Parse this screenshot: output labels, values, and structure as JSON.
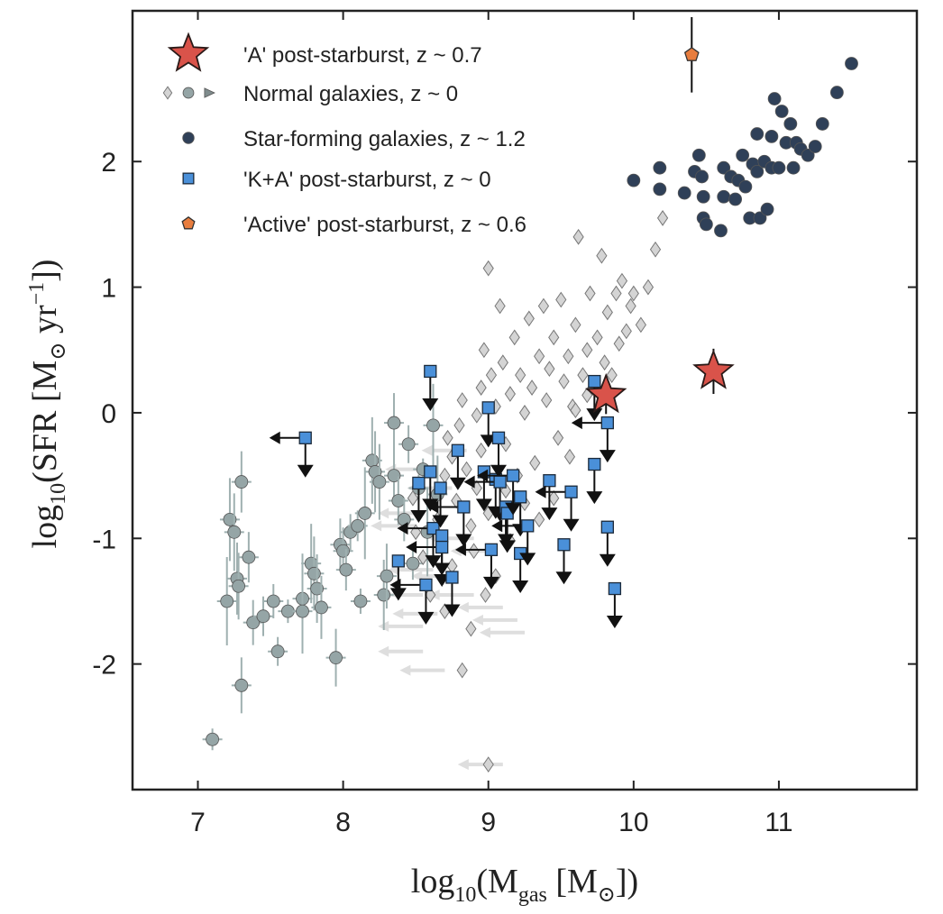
{
  "chart_data": {
    "type": "scatter",
    "xlim": [
      6.55,
      11.95
    ],
    "ylim": [
      -3.0,
      3.2
    ],
    "x_ticks": [
      "7",
      "8",
      "9",
      "10",
      "11"
    ],
    "y_ticks": [
      "-2",
      "-1",
      "0",
      "1",
      "2"
    ],
    "x_tick_values": [
      7,
      8,
      9,
      10,
      11
    ],
    "y_tick_values": [
      -2,
      -1,
      0,
      1,
      2
    ],
    "xlabel": {
      "prefix": "log",
      "sub": "10",
      "open": "(M",
      "sub2": "gas",
      "middle": " [M",
      "odot": "⊙",
      "close": "])"
    },
    "ylabel": {
      "prefix": "log",
      "sub": "10",
      "open": "(SFR [M",
      "odot": "⊙",
      "unit": " yr",
      "sup": "−1",
      "close": "])"
    },
    "grid": false,
    "legend_position": "top-left",
    "legend": [
      {
        "label": "'A' post-starburst, z ~ 0.7",
        "marker": "star",
        "color": "#d9534a"
      },
      {
        "label": "Normal galaxies, z ~ 0",
        "marker": "diamond-circle-triangle",
        "color": "#95a5a6"
      },
      {
        "label": "Star-forming galaxies, z ~ 1.2",
        "marker": "circle",
        "color": "#2f4058"
      },
      {
        "label": "'K+A' post-starburst, z ~ 0",
        "marker": "square",
        "color": "#4a90d9"
      },
      {
        "label": "'Active' post-starburst, z ~ 0.6",
        "marker": "pentagon",
        "color": "#e87d3e"
      }
    ],
    "series": [
      {
        "name": "'A' post-starburst, z ~ 0.7",
        "marker": "star",
        "color": "#d9534a",
        "points": [
          [
            9.81,
            0.14
          ],
          [
            10.55,
            0.33
          ]
        ],
        "y_err": [
          0.15,
          0.18
        ]
      },
      {
        "name": "'Active' post-starburst, z ~ 0.6",
        "marker": "pentagon",
        "color": "#e87d3e",
        "points": [
          [
            10.4,
            2.85
          ]
        ],
        "y_err": [
          0.3
        ]
      },
      {
        "name": "Star-forming galaxies, z ~ 1.2",
        "marker": "circle",
        "color": "#2f4058",
        "points": [
          [
            10.0,
            1.85
          ],
          [
            10.18,
            1.95
          ],
          [
            10.18,
            1.78
          ],
          [
            10.35,
            1.75
          ],
          [
            10.42,
            1.92
          ],
          [
            10.45,
            2.05
          ],
          [
            10.47,
            1.88
          ],
          [
            10.48,
            1.72
          ],
          [
            10.48,
            1.55
          ],
          [
            10.5,
            1.5
          ],
          [
            10.6,
            1.45
          ],
          [
            10.62,
            1.95
          ],
          [
            10.62,
            1.72
          ],
          [
            10.67,
            1.88
          ],
          [
            10.7,
            1.7
          ],
          [
            10.72,
            1.85
          ],
          [
            10.75,
            2.05
          ],
          [
            10.77,
            1.8
          ],
          [
            10.8,
            1.55
          ],
          [
            10.82,
            1.98
          ],
          [
            10.85,
            1.92
          ],
          [
            10.87,
            1.55
          ],
          [
            10.9,
            2.0
          ],
          [
            10.92,
            1.62
          ],
          [
            10.95,
            1.95
          ],
          [
            10.95,
            2.2
          ],
          [
            10.97,
            2.5
          ],
          [
            11.0,
            1.95
          ],
          [
            11.05,
            2.15
          ],
          [
            11.08,
            2.3
          ],
          [
            11.1,
            1.95
          ],
          [
            11.12,
            2.15
          ],
          [
            11.15,
            2.1
          ],
          [
            11.2,
            2.05
          ],
          [
            11.25,
            2.12
          ],
          [
            11.3,
            2.3
          ],
          [
            11.4,
            2.55
          ],
          [
            11.5,
            2.78
          ],
          [
            10.85,
            2.22
          ],
          [
            11.02,
            2.4
          ]
        ]
      },
      {
        "name": "'K+A' post-starburst, z ~ 0",
        "marker": "square",
        "color": "#4a90d9",
        "points": [
          [
            7.74,
            -0.2
          ],
          [
            8.38,
            -1.18
          ],
          [
            8.52,
            -0.56
          ],
          [
            8.57,
            -1.37
          ],
          [
            8.6,
            0.33
          ],
          [
            8.6,
            -0.47
          ],
          [
            8.62,
            -0.92
          ],
          [
            8.67,
            -0.6
          ],
          [
            8.68,
            -0.98
          ],
          [
            8.68,
            -1.07
          ],
          [
            8.75,
            -1.31
          ],
          [
            8.79,
            -0.3
          ],
          [
            8.83,
            -0.75
          ],
          [
            8.97,
            -0.47
          ],
          [
            9.0,
            0.04
          ],
          [
            9.02,
            -1.09
          ],
          [
            9.05,
            -0.53
          ],
          [
            9.07,
            -0.2
          ],
          [
            9.08,
            -0.55
          ],
          [
            9.12,
            -0.75
          ],
          [
            9.13,
            -0.8
          ],
          [
            9.17,
            -0.5
          ],
          [
            9.22,
            -0.67
          ],
          [
            9.22,
            -1.12
          ],
          [
            9.27,
            -0.9
          ],
          [
            9.42,
            -0.54
          ],
          [
            9.52,
            -1.05
          ],
          [
            9.57,
            -0.63
          ],
          [
            9.73,
            -0.41
          ],
          [
            9.73,
            0.25
          ],
          [
            9.82,
            -0.08
          ],
          [
            9.82,
            -0.91
          ],
          [
            9.87,
            -1.4
          ]
        ],
        "upper_limit": true
      },
      {
        "name": "Normal galaxies, z ~ 0",
        "marker": "circle",
        "color": "#95a5a6",
        "points": [
          [
            7.1,
            -2.6
          ],
          [
            7.2,
            -1.5
          ],
          [
            7.22,
            -0.85
          ],
          [
            7.25,
            -0.95
          ],
          [
            7.27,
            -1.32
          ],
          [
            7.28,
            -1.38
          ],
          [
            7.3,
            -0.55
          ],
          [
            7.3,
            -2.17
          ],
          [
            7.35,
            -1.15
          ],
          [
            7.38,
            -1.67
          ],
          [
            7.45,
            -1.62
          ],
          [
            7.52,
            -1.5
          ],
          [
            7.55,
            -1.9
          ],
          [
            7.62,
            -1.58
          ],
          [
            7.72,
            -1.48
          ],
          [
            7.72,
            -1.58
          ],
          [
            7.78,
            -1.2
          ],
          [
            7.8,
            -1.28
          ],
          [
            7.82,
            -1.4
          ],
          [
            7.85,
            -1.55
          ],
          [
            7.95,
            -1.95
          ],
          [
            7.98,
            -1.05
          ],
          [
            8.0,
            -1.1
          ],
          [
            8.02,
            -1.25
          ],
          [
            8.05,
            -0.95
          ],
          [
            8.1,
            -0.9
          ],
          [
            8.12,
            -1.5
          ],
          [
            8.15,
            -0.8
          ],
          [
            8.2,
            -0.38
          ],
          [
            8.22,
            -0.47
          ],
          [
            8.25,
            -0.55
          ],
          [
            8.28,
            -1.45
          ],
          [
            8.3,
            -1.3
          ],
          [
            8.35,
            -0.08
          ],
          [
            8.35,
            -0.5
          ],
          [
            8.38,
            -0.7
          ],
          [
            8.42,
            -0.85
          ],
          [
            8.45,
            -0.25
          ],
          [
            8.48,
            -1.2
          ],
          [
            8.52,
            -0.6
          ],
          [
            8.55,
            -0.45
          ],
          [
            8.58,
            -0.95
          ],
          [
            8.62,
            -0.1
          ],
          [
            8.65,
            -0.65
          ]
        ]
      },
      {
        "name": "Normal galaxies, z ~ 0",
        "marker": "diamond",
        "color": "#d4d4d4",
        "points": [
          [
            8.65,
            -0.85
          ],
          [
            8.7,
            -0.5
          ],
          [
            8.72,
            -0.2
          ],
          [
            8.75,
            -0.35
          ],
          [
            8.78,
            -0.7
          ],
          [
            8.8,
            -0.1
          ],
          [
            8.82,
            0.1
          ],
          [
            8.85,
            -0.45
          ],
          [
            8.88,
            -0.9
          ],
          [
            8.9,
            -1.1
          ],
          [
            8.92,
            -0.6
          ],
          [
            8.95,
            0.2
          ],
          [
            8.95,
            -0.3
          ],
          [
            8.97,
            0.5
          ],
          [
            9.0,
            -0.8
          ],
          [
            9.0,
            1.15
          ],
          [
            9.02,
            0.3
          ],
          [
            9.05,
            0.05
          ],
          [
            9.05,
            -1.3
          ],
          [
            9.08,
            0.85
          ],
          [
            9.1,
            0.4
          ],
          [
            9.12,
            -0.25
          ],
          [
            9.15,
            0.15
          ],
          [
            9.18,
            0.6
          ],
          [
            9.2,
            -0.5
          ],
          [
            9.22,
            0.3
          ],
          [
            9.25,
            0.0
          ],
          [
            9.28,
            0.75
          ],
          [
            9.3,
            0.2
          ],
          [
            9.32,
            -0.4
          ],
          [
            9.35,
            0.45
          ],
          [
            9.38,
            0.85
          ],
          [
            9.4,
            0.1
          ],
          [
            9.42,
            0.35
          ],
          [
            9.45,
            0.6
          ],
          [
            9.48,
            -0.2
          ],
          [
            9.5,
            0.9
          ],
          [
            9.52,
            0.25
          ],
          [
            9.55,
            0.45
          ],
          [
            9.58,
            0.05
          ],
          [
            9.6,
            0.7
          ],
          [
            9.62,
            1.4
          ],
          [
            9.65,
            0.3
          ],
          [
            9.68,
            0.5
          ],
          [
            9.7,
            0.95
          ],
          [
            9.72,
            0.2
          ],
          [
            9.75,
            0.6
          ],
          [
            9.78,
            1.25
          ],
          [
            9.8,
            0.4
          ],
          [
            9.82,
            0.8
          ],
          [
            9.85,
            0.3
          ],
          [
            9.88,
            0.95
          ],
          [
            9.9,
            0.55
          ],
          [
            9.92,
            1.05
          ],
          [
            9.95,
            0.65
          ],
          [
            9.98,
            0.85
          ],
          [
            10.0,
            0.95
          ],
          [
            10.05,
            0.7
          ],
          [
            10.1,
            1.0
          ],
          [
            10.15,
            1.3
          ],
          [
            10.2,
            1.55
          ],
          [
            9.0,
            -2.8
          ],
          [
            8.82,
            -2.05
          ],
          [
            8.88,
            -1.72
          ],
          [
            8.7,
            -1.58
          ],
          [
            8.6,
            -1.45
          ],
          [
            8.55,
            -1.15
          ],
          [
            8.5,
            -0.95
          ],
          [
            8.48,
            -0.68
          ],
          [
            8.92,
            -0.02
          ],
          [
            9.12,
            -0.62
          ],
          [
            9.35,
            -0.85
          ],
          [
            9.45,
            -0.68
          ],
          [
            9.56,
            -0.35
          ],
          [
            9.68,
            0.14
          ],
          [
            9.6,
            0.02
          ],
          [
            9.25,
            -0.72
          ],
          [
            9.15,
            -1.02
          ],
          [
            8.98,
            -1.45
          ],
          [
            8.75,
            -1.22
          ]
        ]
      },
      {
        "name": "Normal galaxies, z ~ 0",
        "marker": "triangle",
        "color": "#7f8c8d",
        "points": [
          [
            8.88,
            0.45
          ],
          [
            8.9,
            -0.65
          ],
          [
            8.95,
            -1.0
          ],
          [
            9.55,
            -0.25
          ],
          [
            9.15,
            -0.42
          ]
        ]
      }
    ]
  }
}
